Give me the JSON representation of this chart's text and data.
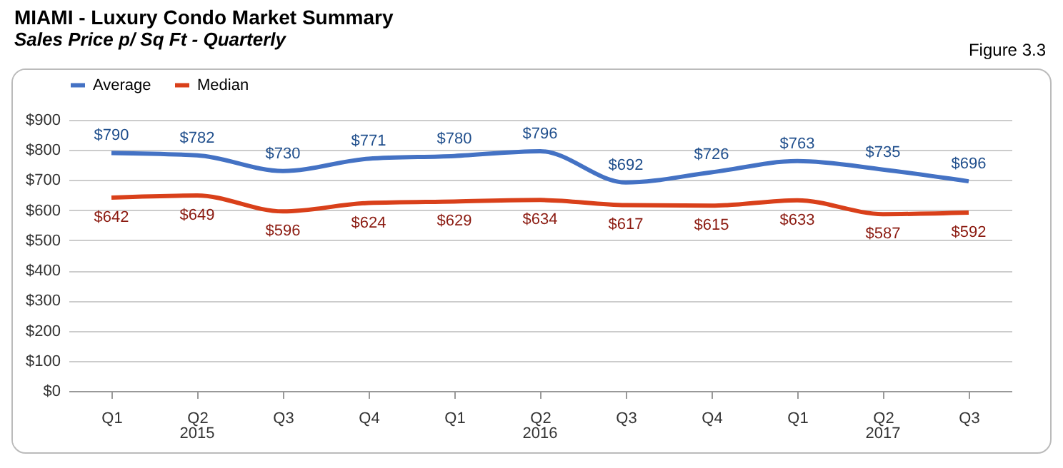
{
  "chart_data": {
    "type": "line",
    "title": "MIAMI - Luxury Condo Market Summary",
    "subtitle": "Sales Price p/ Sq Ft - Quarterly",
    "annotations": [
      "Figure 3.3",
      "2015",
      "2016",
      "2017"
    ],
    "categories": [
      "Q1",
      "Q2",
      "Q3",
      "Q4",
      "Q1",
      "Q2",
      "Q3",
      "Q4",
      "Q1",
      "Q2",
      "Q3"
    ],
    "series": [
      {
        "name": "Average",
        "color": "#4472c4",
        "values": [
          790,
          782,
          730,
          771,
          780,
          796,
          692,
          726,
          763,
          735,
          696
        ],
        "value_labels": [
          "$790",
          "$782",
          "$730",
          "$771",
          "$780",
          "$796",
          "$692",
          "$726",
          "$763",
          "$735",
          "$696"
        ]
      },
      {
        "name": "Median",
        "color": "#d9401a",
        "values": [
          642,
          649,
          596,
          624,
          629,
          634,
          617,
          615,
          633,
          587,
          592
        ],
        "value_labels": [
          "$642",
          "$649",
          "$596",
          "$624",
          "$629",
          "$634",
          "$617",
          "$615",
          "$633",
          "$587",
          "$592"
        ]
      }
    ],
    "ylim": [
      0,
      900
    ],
    "yticks": [
      {
        "value": 0,
        "label": "$0"
      },
      {
        "value": 100,
        "label": "$100"
      },
      {
        "value": 200,
        "label": "$200"
      },
      {
        "value": 300,
        "label": "$300"
      },
      {
        "value": 400,
        "label": "$400"
      },
      {
        "value": 500,
        "label": "$500"
      },
      {
        "value": 600,
        "label": "$600"
      },
      {
        "value": 700,
        "label": "$700"
      },
      {
        "value": 800,
        "label": "$800"
      },
      {
        "value": 900,
        "label": "$900"
      }
    ],
    "grid": "y",
    "legend": "top",
    "marker": "none",
    "line_style": "solid"
  }
}
